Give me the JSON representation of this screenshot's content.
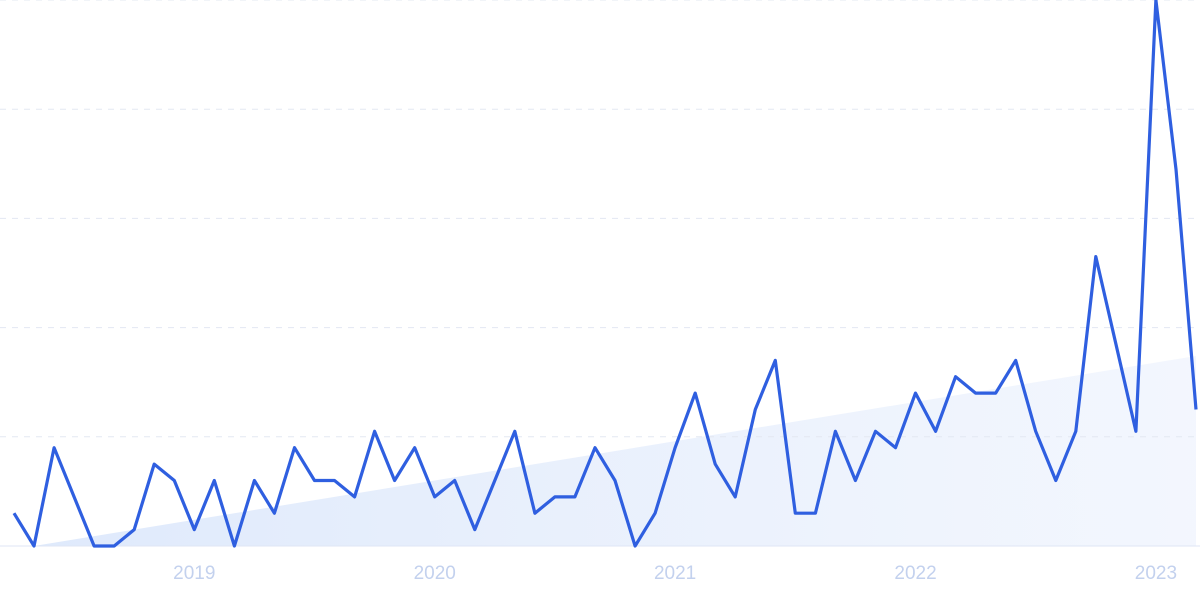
{
  "chart_data": {
    "type": "line",
    "categories": [
      null,
      null,
      null,
      null,
      null,
      null,
      null,
      null,
      null,
      "2019",
      null,
      null,
      null,
      null,
      null,
      null,
      null,
      null,
      null,
      null,
      null,
      "2020",
      null,
      null,
      null,
      null,
      null,
      null,
      null,
      null,
      null,
      null,
      null,
      "2021",
      null,
      null,
      null,
      null,
      null,
      null,
      null,
      null,
      null,
      null,
      null,
      "2022",
      null,
      null,
      null,
      null,
      null,
      null,
      null,
      null,
      null,
      null,
      null,
      "2023",
      null,
      null
    ],
    "series": [
      {
        "color": "#2f5fe0",
        "values": [
          6,
          0,
          18,
          9,
          0,
          0,
          3,
          15,
          12,
          3,
          12,
          0,
          12,
          6,
          18,
          12,
          12,
          9,
          21,
          12,
          18,
          9,
          12,
          3,
          12,
          21,
          6,
          9,
          9,
          18,
          12,
          0,
          6,
          18,
          28,
          15,
          9,
          25,
          34,
          6,
          6,
          21,
          12,
          21,
          18,
          28,
          21,
          31,
          28,
          28,
          34,
          21,
          12,
          21,
          53,
          37,
          21,
          100,
          69,
          25
        ]
      }
    ],
    "ylim": [
      0,
      100
    ],
    "yticks": [
      0,
      20,
      40,
      60,
      80,
      100
    ],
    "grid": true
  }
}
